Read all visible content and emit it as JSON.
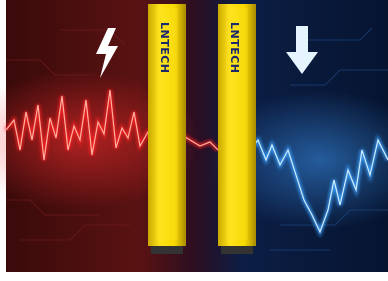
{
  "bars": [
    {
      "label": "LNTECH"
    },
    {
      "label": "LNTECH"
    }
  ]
}
